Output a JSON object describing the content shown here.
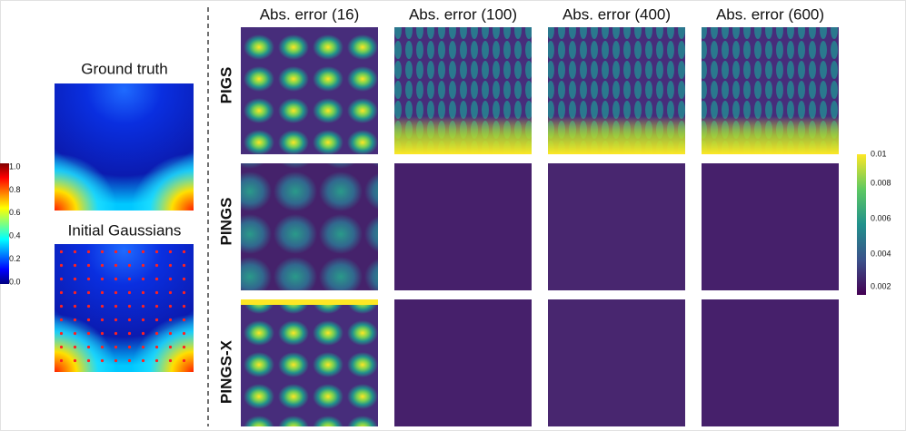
{
  "left": {
    "colorbar_ticks": [
      "1.0",
      "0.8",
      "0.6",
      "0.4",
      "0.2",
      "0.0"
    ],
    "panels": [
      {
        "title": "Ground truth"
      },
      {
        "title": "Initial Gaussians"
      }
    ]
  },
  "grid": {
    "columns": [
      "Abs. error (16)",
      "Abs. error (100)",
      "Abs. error (400)",
      "Abs. error (600)"
    ],
    "rows": [
      "PIGS",
      "PINGS",
      "PINGS-X"
    ],
    "colorbar_ticks": [
      "0.01",
      "0.008",
      "0.006",
      "0.004",
      "0.002"
    ]
  }
}
